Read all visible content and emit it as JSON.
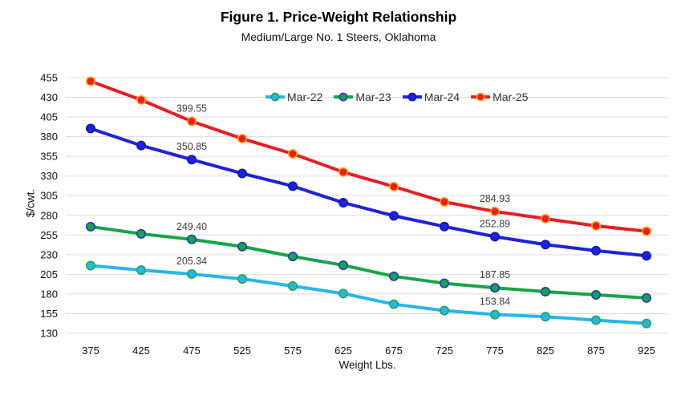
{
  "figure": {
    "title": "Figure 1. Price-Weight Relationship",
    "subtitle": "Medium/Large No. 1 Steers, Oklahoma"
  },
  "chart_data": {
    "type": "line",
    "title": "Figure 1. Price-Weight Relationship",
    "subtitle": "Medium/Large No. 1 Steers, Oklahoma",
    "xlabel": "Weight Lbs.",
    "ylabel": "$/cwt.",
    "x": [
      375,
      425,
      475,
      525,
      575,
      625,
      675,
      725,
      775,
      825,
      875,
      925
    ],
    "ylim": [
      130,
      455
    ],
    "ytick_step": 25,
    "yticks": [
      130,
      155,
      180,
      205,
      230,
      255,
      280,
      305,
      330,
      355,
      380,
      405,
      430,
      455
    ],
    "grid": "horizontal-only",
    "gridline_color": "#DEDEDE",
    "legend_position": "top-center-inside",
    "data_label_color": "#3F3F3F",
    "series": [
      {
        "name": "Mar-22",
        "color": "#29B5E8",
        "marker_fill": "#29B5E8",
        "marker_edge": "#1FA94F",
        "values": [
          216.1,
          210.4,
          205.34,
          199.2,
          190.1,
          180.5,
          167.0,
          158.9,
          153.84,
          151.1,
          146.7,
          142.5
        ],
        "point_labels": {
          "2": "205.34",
          "8": "153.84"
        }
      },
      {
        "name": "Mar-23",
        "color": "#17A44A",
        "marker_fill": "#17A44A",
        "marker_edge": "#2038C8",
        "values": [
          265.6,
          256.5,
          249.4,
          240.3,
          227.7,
          216.6,
          202.4,
          193.6,
          187.85,
          183.0,
          178.9,
          175.0
        ],
        "point_labels": {
          "2": "249.40",
          "8": "187.85"
        }
      },
      {
        "name": "Mar-24",
        "color": "#1E22DC",
        "marker_fill": "#1E22DC",
        "marker_edge": "#1418B0",
        "values": [
          390.4,
          368.8,
          350.85,
          333.3,
          317.1,
          296.1,
          279.4,
          265.8,
          252.89,
          242.8,
          235.1,
          228.6
        ],
        "point_labels": {
          "2": "350.85",
          "8": "252.89"
        }
      },
      {
        "name": "Mar-25",
        "color": "#EB1C24",
        "marker_fill": "#EB1C24",
        "marker_edge": "#FFA40B",
        "values": [
          450.5,
          426.7,
          399.55,
          377.5,
          358.2,
          335.0,
          316.5,
          297.1,
          284.93,
          275.7,
          266.6,
          259.8
        ],
        "point_labels": {
          "2": "399.55",
          "8": "284.93"
        }
      }
    ]
  }
}
